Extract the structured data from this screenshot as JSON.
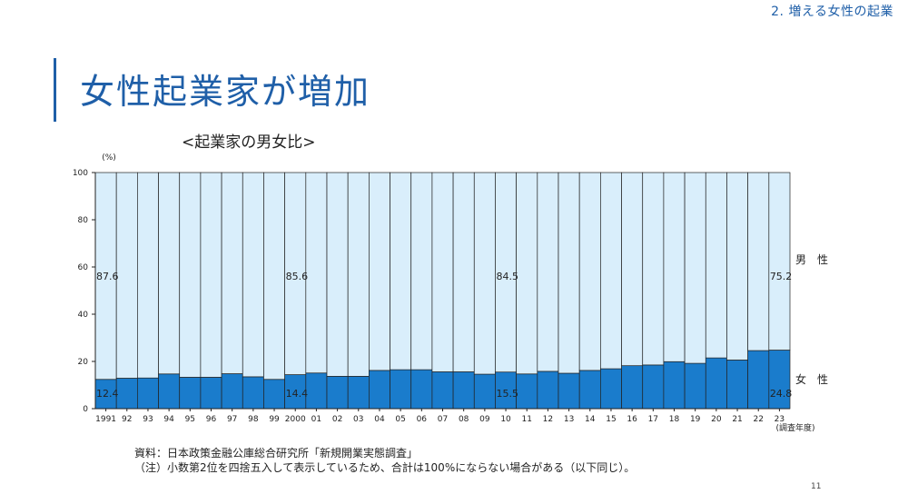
{
  "header": {
    "section": "2. 増える女性の起業",
    "title": "女性起業家が増加"
  },
  "chart_data": {
    "type": "bar",
    "stacked": true,
    "title": "<起業家の男女比>",
    "ylabel": "(%)",
    "xlabel": "(調査年度)",
    "ylim": [
      0,
      100
    ],
    "yticks": [
      0,
      20,
      40,
      60,
      80,
      100
    ],
    "categories": [
      "1991",
      "92",
      "93",
      "94",
      "95",
      "96",
      "97",
      "98",
      "99",
      "2000",
      "01",
      "02",
      "03",
      "04",
      "05",
      "06",
      "07",
      "08",
      "09",
      "10",
      "11",
      "12",
      "13",
      "14",
      "15",
      "16",
      "17",
      "18",
      "19",
      "20",
      "21",
      "22",
      "23"
    ],
    "series": [
      {
        "name": "女　性",
        "color": "#1a7ccc",
        "values": [
          12.4,
          12.9,
          13.0,
          14.7,
          13.3,
          13.3,
          14.8,
          13.5,
          12.4,
          14.4,
          15.1,
          13.7,
          13.7,
          16.2,
          16.5,
          16.5,
          15.6,
          15.6,
          14.6,
          15.5,
          14.7,
          15.8,
          15.0,
          16.2,
          16.9,
          18.2,
          18.5,
          19.9,
          19.2,
          21.5,
          20.6,
          24.6,
          24.8
        ]
      },
      {
        "name": "男　性",
        "color": "#d9eefb",
        "values": [
          87.6,
          87.1,
          87.0,
          85.3,
          86.7,
          86.7,
          85.2,
          86.5,
          87.6,
          85.6,
          84.9,
          86.3,
          86.3,
          83.8,
          83.5,
          83.5,
          84.4,
          84.4,
          85.4,
          84.5,
          85.3,
          84.2,
          85.0,
          83.8,
          83.1,
          81.8,
          81.5,
          80.1,
          80.8,
          78.5,
          79.4,
          75.4,
          75.2
        ]
      }
    ],
    "labeled_points": [
      {
        "category": "1991",
        "female": "12.4",
        "male": "87.6"
      },
      {
        "category": "2000",
        "female": "14.4",
        "male": "85.6"
      },
      {
        "category": "10",
        "female": "15.5",
        "male": "84.5"
      },
      {
        "category": "23",
        "female": "24.8",
        "male": "75.2"
      }
    ]
  },
  "notes": {
    "source": "資料：日本政策金融公庫総合研究所「新規開業実態調査」",
    "note": "（注）小数第2位を四捨五入して表示しているため、合計は100%にならない場合がある（以下同じ）。"
  },
  "page_number": "11"
}
